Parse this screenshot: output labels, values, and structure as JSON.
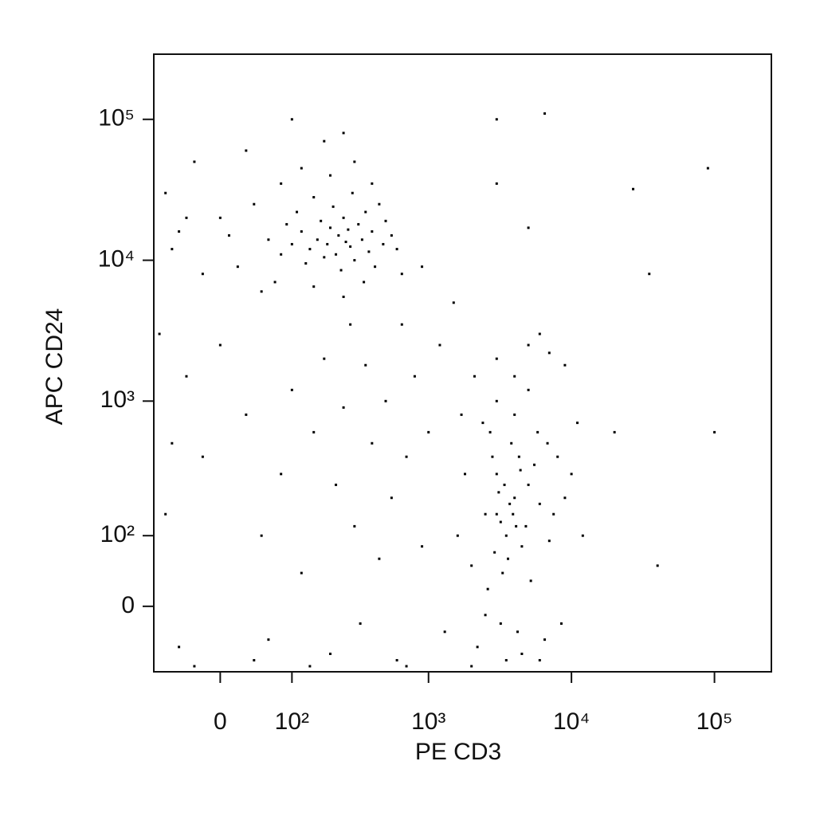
{
  "chart_data": {
    "type": "scatter",
    "x_label": "PE CD3",
    "y_label": "APC CD24",
    "xscale": "biexponential",
    "yscale": "biexponential",
    "color": "#000000",
    "xlim": [
      -90,
      250000
    ],
    "ylim": [
      -90,
      290000
    ],
    "xticks": [
      0,
      {
        "value": 100,
        "label": "10²"
      },
      {
        "value": 1000,
        "label": "10³"
      },
      {
        "value": 10000,
        "label": "10⁴"
      },
      {
        "value": 100000,
        "label": "10⁵"
      }
    ],
    "yticks": [
      0,
      {
        "value": 100,
        "label": "10²"
      },
      {
        "value": 1000,
        "label": "10³"
      },
      {
        "value": 10000,
        "label": "10⁴"
      },
      {
        "value": 100000,
        "label": "10⁵"
      }
    ],
    "x": [
      -60,
      -40,
      -20,
      -70,
      -30,
      10,
      20,
      40,
      30,
      60,
      80,
      90,
      70,
      100,
      110,
      120,
      130,
      140,
      150,
      160,
      170,
      180,
      190,
      200,
      210,
      220,
      230,
      240,
      250,
      260,
      270,
      280,
      290,
      300,
      320,
      340,
      360,
      380,
      400,
      420,
      450,
      480,
      500,
      550,
      600,
      650,
      120,
      200,
      80,
      300,
      50,
      150,
      250,
      350,
      0,
      -50,
      180,
      400,
      100,
      250,
      2000,
      2500,
      3000,
      3500,
      4000,
      3200,
      2800,
      4500,
      5000,
      3800,
      2200,
      2600,
      3000,
      3400,
      3600,
      4200,
      4800,
      5500,
      6000,
      7000,
      8000,
      9000,
      1800,
      1600,
      2400,
      3000,
      4000,
      5000,
      3500,
      4500,
      6500,
      2000,
      2700,
      3300,
      3700,
      4100,
      4400,
      3100,
      2900,
      5200,
      5800,
      6800,
      7500,
      10000,
      11000,
      12000,
      1700,
      2100,
      3000,
      5000,
      7000,
      9000,
      3900,
      4300,
      3200,
      2500,
      6000,
      8500,
      4000,
      6000,
      -80,
      -40,
      -60,
      -70,
      -50,
      -20,
      0,
      30,
      50,
      60,
      80,
      100,
      120,
      150,
      180,
      200,
      220,
      250,
      280,
      300,
      330,
      360,
      400,
      450,
      500,
      550,
      600,
      650,
      700,
      800,
      900,
      1000,
      1200,
      1300,
      -30,
      40,
      140,
      700,
      1500,
      900,
      3000,
      6500,
      90000,
      27000,
      100000,
      40000,
      35000,
      20000,
      3000,
      5000
    ],
    "values": [
      12000,
      20000,
      8000,
      30000,
      50000,
      15000,
      9000,
      25000,
      60000,
      14000,
      11000,
      18000,
      7000,
      13000,
      22000,
      16000,
      9500,
      12000,
      28000,
      14000,
      19000,
      10500,
      13000,
      17000,
      24000,
      11000,
      15000,
      8500,
      20000,
      13500,
      16500,
      12500,
      30000,
      10000,
      18000,
      14000,
      22000,
      11500,
      16000,
      9000,
      25000,
      13000,
      19000,
      15000,
      12000,
      8000,
      45000,
      40000,
      35000,
      50000,
      6000,
      6500,
      5500,
      7000,
      20000,
      16000,
      70000,
      35000,
      100000,
      80000,
      50,
      150,
      300,
      100,
      200,
      -20,
      400,
      80,
      250,
      500,
      -50,
      20,
      150,
      250,
      60,
      -30,
      120,
      350,
      180,
      90,
      400,
      200,
      300,
      100,
      700,
      1000,
      800,
      1200,
      -70,
      -60,
      -40,
      -80,
      600,
      40,
      180,
      120,
      320,
      220,
      70,
      30,
      600,
      500,
      150,
      300,
      700,
      100,
      800,
      1500,
      2000,
      2500,
      2200,
      1800,
      150,
      400,
      130,
      -10,
      -70,
      -20,
      1500,
      3000,
      3000,
      1500,
      500,
      150,
      -50,
      400,
      2500,
      800,
      100,
      -40,
      300,
      1200,
      40,
      600,
      2000,
      -60,
      250,
      900,
      3500,
      120,
      -20,
      1800,
      500,
      60,
      1000,
      200,
      -70,
      3500,
      400,
      1500,
      80,
      600,
      2500,
      -30,
      -80,
      -70,
      -80,
      -80,
      5000,
      9000,
      100000,
      110000,
      45000,
      32000,
      600,
      50,
      8000,
      600,
      35000,
      17000
    ]
  }
}
